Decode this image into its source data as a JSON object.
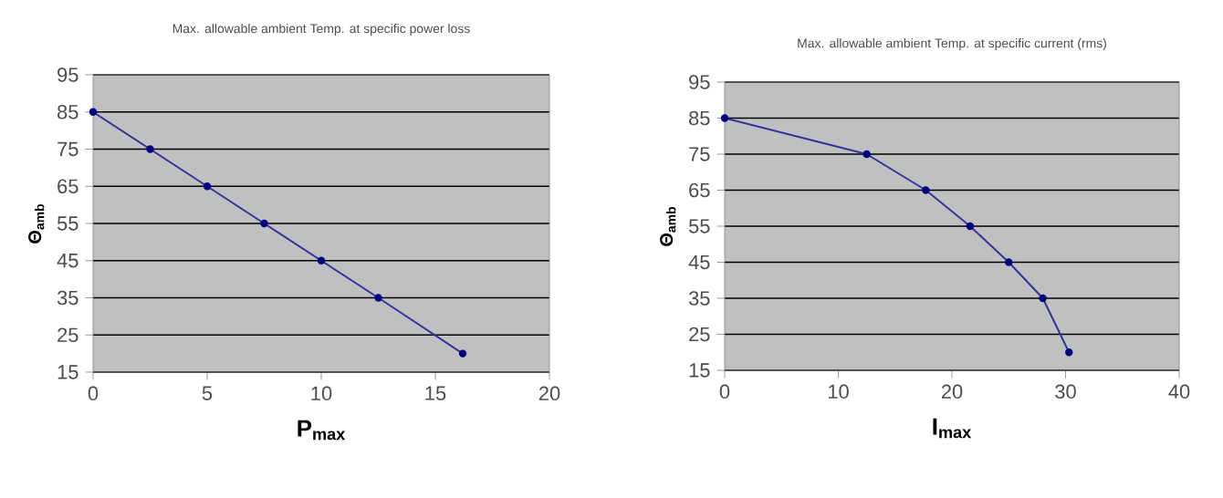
{
  "chart_data": [
    {
      "type": "line",
      "title": "Max. allowable ambient Temp. at specific power loss",
      "xlabel": "P$_{max}$",
      "ylabel": "Θ$_{amb}$",
      "x": [
        0,
        2.5,
        5,
        7.5,
        10,
        12.5,
        16.2
      ],
      "series": [
        {
          "color": "#333399",
          "values": [
            85,
            75,
            65,
            55,
            45,
            35,
            20
          ]
        }
      ],
      "xlim": [
        0,
        20
      ],
      "xticks": [
        0,
        5,
        10,
        15,
        20
      ],
      "ylim": [
        15,
        95
      ],
      "yticks": [
        15,
        25,
        35,
        45,
        55,
        65,
        75,
        85,
        95
      ],
      "grid": "y",
      "marker": "circle"
    },
    {
      "type": "line",
      "title": "Max. allowable ambient Temp. at specific current (rms)",
      "xlabel": "I$_{max}$",
      "ylabel": "Θ$_{amb}$",
      "x": [
        0,
        12.5,
        17.7,
        21.6,
        25,
        28,
        30.3
      ],
      "series": [
        {
          "color": "#333399",
          "values": [
            85,
            75,
            65,
            55,
            45,
            35,
            20
          ]
        }
      ],
      "xlim": [
        0,
        40
      ],
      "xticks": [
        0,
        10,
        20,
        30,
        40
      ],
      "ylim": [
        15,
        95
      ],
      "yticks": [
        15,
        25,
        35,
        45,
        55,
        65,
        75,
        85,
        95
      ],
      "grid": "y",
      "marker": "circle"
    }
  ]
}
